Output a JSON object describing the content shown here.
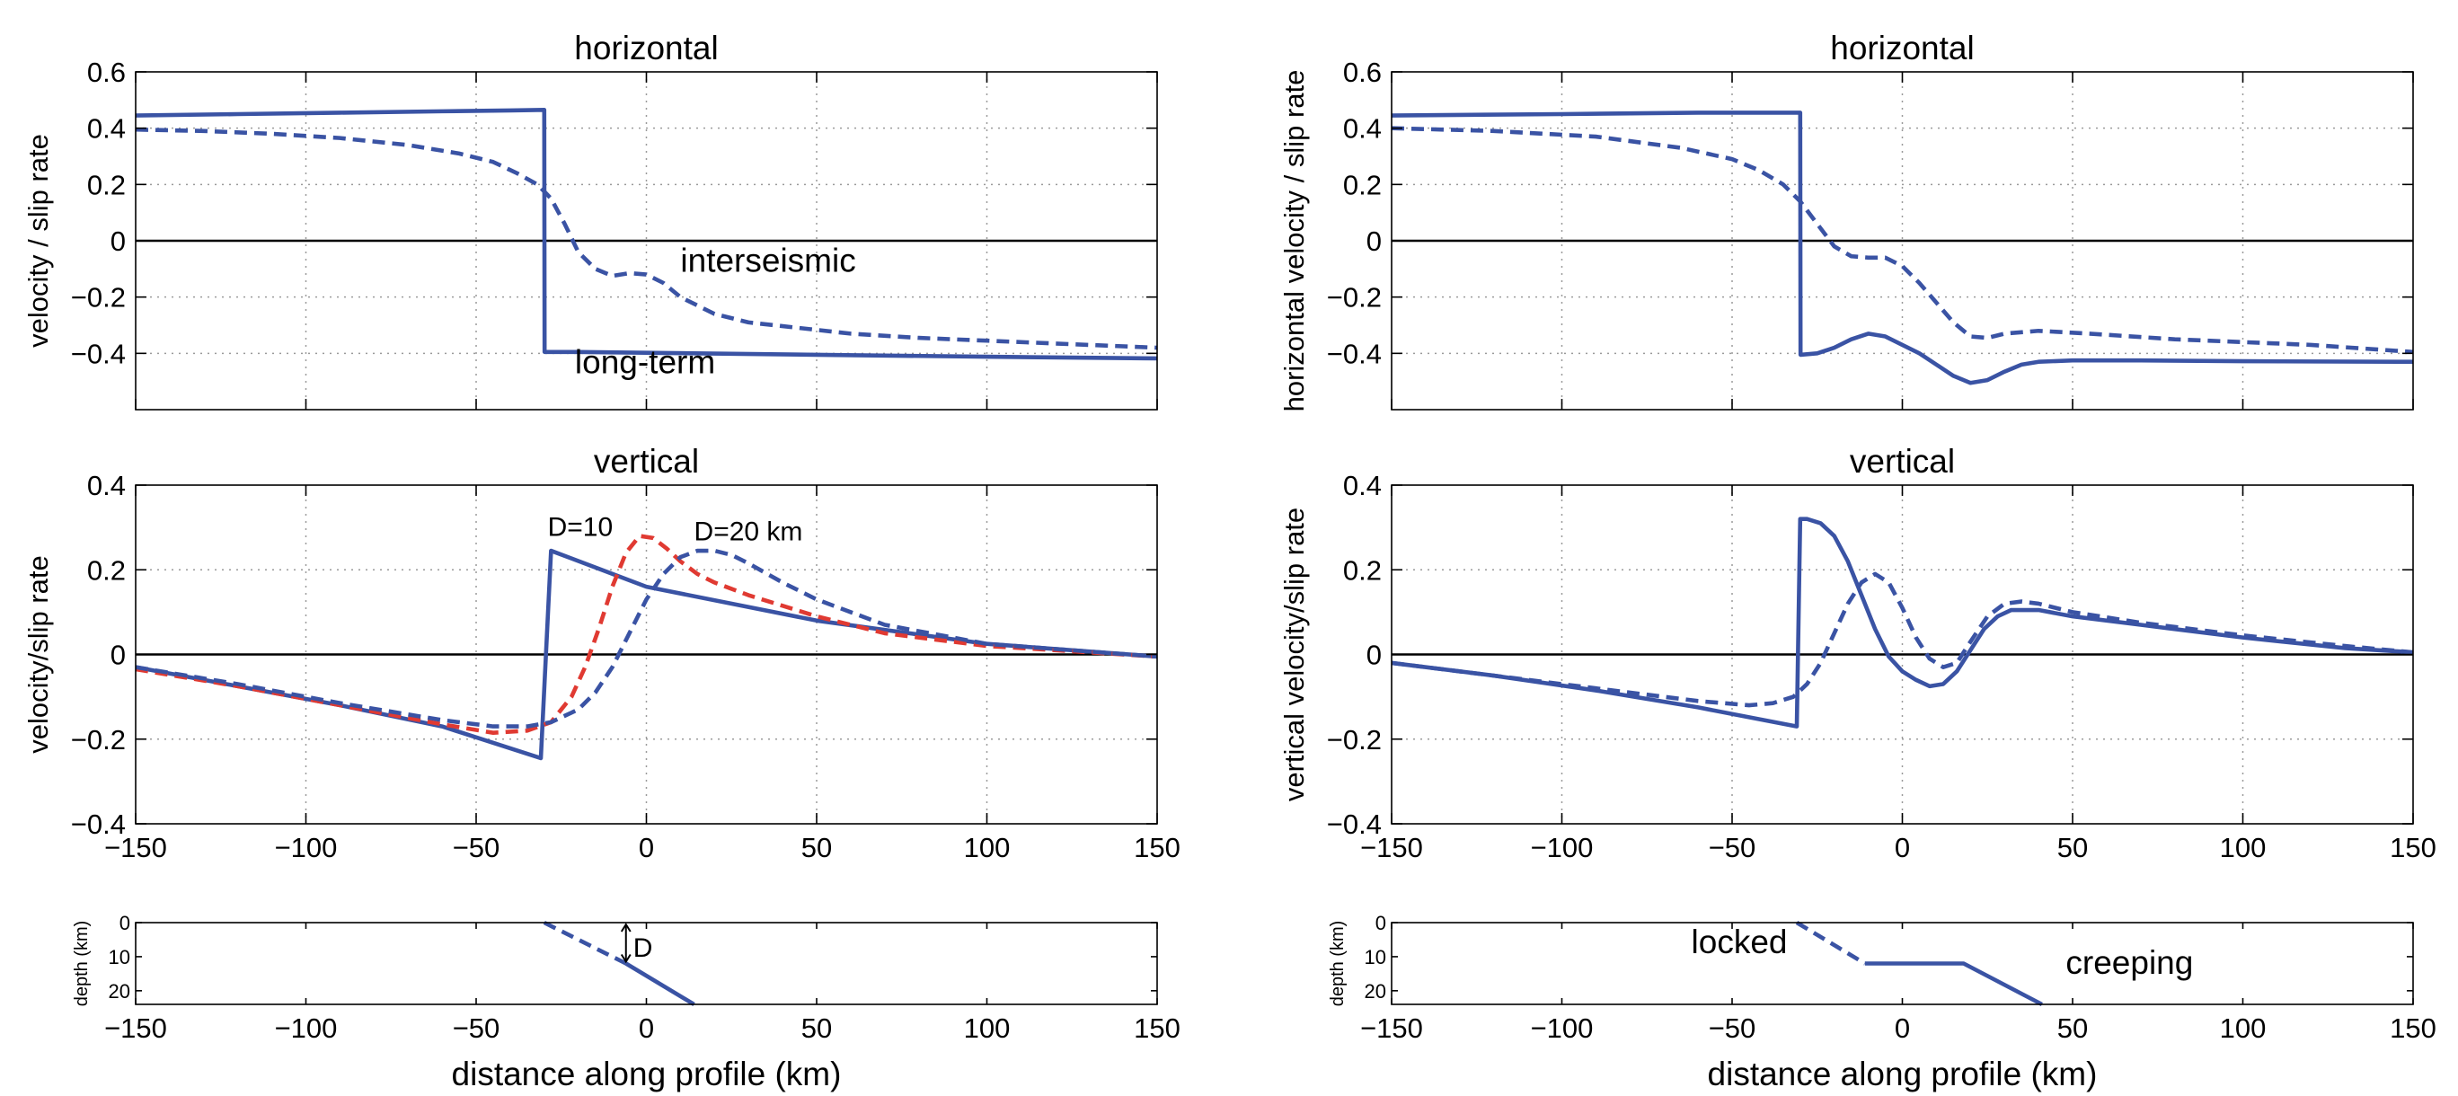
{
  "x_axis_label": "distance along profile (km)",
  "chart_data": [
    {
      "id": "left-horizontal",
      "type": "line",
      "title": "horizontal",
      "ylabel": "velocity / slip rate",
      "xlim": [
        -150,
        150
      ],
      "ylim": [
        -0.6,
        0.6
      ],
      "xticks": [
        -150,
        -100,
        -50,
        0,
        50,
        100,
        150
      ],
      "show_xticklabels": false,
      "yticks": [
        -0.4,
        -0.2,
        0,
        0.2,
        0.4,
        0.6
      ],
      "yticklabels": [
        "−0.4",
        "−0.2",
        "0",
        "0.2",
        "0.4",
        "0.6"
      ],
      "grid": true,
      "series": [
        {
          "color": "#3a53a4",
          "dash": "solid",
          "x": [
            -150,
            -120,
            -90,
            -60,
            -40,
            -30,
            -29.9,
            -20,
            0,
            50,
            100,
            150
          ],
          "y": [
            0.445,
            0.45,
            0.455,
            0.46,
            0.463,
            0.465,
            -0.395,
            -0.395,
            -0.398,
            -0.405,
            -0.412,
            -0.418
          ]
        },
        {
          "color": "#3a53a4",
          "dash": "dashed",
          "x": [
            -150,
            -130,
            -110,
            -90,
            -70,
            -55,
            -45,
            -38,
            -32,
            -28,
            -24,
            -20,
            -15,
            -10,
            -5,
            0,
            5,
            10,
            20,
            30,
            45,
            60,
            80,
            100,
            120,
            150
          ],
          "y": [
            0.395,
            0.39,
            0.38,
            0.365,
            0.34,
            0.31,
            0.28,
            0.24,
            0.2,
            0.15,
            0.06,
            -0.04,
            -0.1,
            -0.125,
            -0.115,
            -0.12,
            -0.15,
            -0.2,
            -0.26,
            -0.29,
            -0.31,
            -0.33,
            -0.345,
            -0.355,
            -0.365,
            -0.38
          ]
        }
      ],
      "annotations": [
        {
          "text": "interseismic",
          "x": 10,
          "y": -0.11
        },
        {
          "text": "long-term",
          "x": -21,
          "y": -0.47
        }
      ]
    },
    {
      "id": "right-horizontal",
      "type": "line",
      "title": "horizontal",
      "ylabel": "horizontal velocity / slip rate",
      "xlim": [
        -150,
        150
      ],
      "ylim": [
        -0.6,
        0.6
      ],
      "xticks": [
        -150,
        -100,
        -50,
        0,
        50,
        100,
        150
      ],
      "show_xticklabels": false,
      "yticks": [
        -0.4,
        -0.2,
        0,
        0.2,
        0.4,
        0.6
      ],
      "yticklabels": [
        "−0.4",
        "−0.2",
        "0",
        "0.2",
        "0.4",
        "0.6"
      ],
      "grid": true,
      "series": [
        {
          "color": "#3a53a4",
          "dash": "solid",
          "x": [
            -150,
            -100,
            -60,
            -40,
            -30,
            -29.9,
            -25,
            -20,
            -15,
            -10,
            -5,
            0,
            5,
            10,
            15,
            20,
            25,
            30,
            35,
            40,
            50,
            70,
            100,
            150
          ],
          "y": [
            0.445,
            0.45,
            0.455,
            0.455,
            0.455,
            -0.405,
            -0.4,
            -0.38,
            -0.35,
            -0.33,
            -0.34,
            -0.37,
            -0.4,
            -0.44,
            -0.48,
            -0.505,
            -0.495,
            -0.465,
            -0.44,
            -0.43,
            -0.425,
            -0.425,
            -0.428,
            -0.43
          ]
        },
        {
          "color": "#3a53a4",
          "dash": "dashed",
          "x": [
            -150,
            -120,
            -90,
            -65,
            -50,
            -42,
            -35,
            -30,
            -25,
            -20,
            -15,
            -10,
            -5,
            0,
            5,
            10,
            15,
            20,
            25,
            30,
            40,
            55,
            80,
            100,
            120,
            150
          ],
          "y": [
            0.4,
            0.39,
            0.37,
            0.33,
            0.29,
            0.25,
            0.2,
            0.14,
            0.06,
            -0.02,
            -0.055,
            -0.06,
            -0.06,
            -0.09,
            -0.15,
            -0.22,
            -0.29,
            -0.34,
            -0.345,
            -0.33,
            -0.32,
            -0.33,
            -0.35,
            -0.36,
            -0.37,
            -0.395
          ]
        }
      ],
      "annotations": []
    },
    {
      "id": "left-vertical",
      "type": "line",
      "title": "vertical",
      "ylabel": "velocity/slip rate",
      "xlim": [
        -150,
        150
      ],
      "ylim": [
        -0.4,
        0.4
      ],
      "xticks": [
        -150,
        -100,
        -50,
        0,
        50,
        100,
        150
      ],
      "xticklabels": [
        "−150",
        "−100",
        "−50",
        "0",
        "50",
        "100",
        "150"
      ],
      "show_xticklabels": true,
      "yticks": [
        -0.4,
        -0.2,
        0,
        0.2,
        0.4
      ],
      "yticklabels": [
        "−0.4",
        "−0.2",
        "0",
        "0.2",
        "0.4"
      ],
      "grid": true,
      "series": [
        {
          "color": "#3a53a4",
          "dash": "solid",
          "x": [
            -150,
            -120,
            -90,
            -60,
            -31,
            -28,
            0,
            50,
            100,
            150
          ],
          "y": [
            -0.03,
            -0.075,
            -0.12,
            -0.17,
            -0.245,
            0.245,
            0.16,
            0.08,
            0.025,
            -0.005
          ]
        },
        {
          "color": "#e03a32",
          "dash": "dashed",
          "x": [
            -150,
            -120,
            -90,
            -60,
            -45,
            -35,
            -28,
            -22,
            -18,
            -14,
            -10,
            -6,
            -2,
            2,
            6,
            10,
            15,
            20,
            30,
            50,
            70,
            100,
            150
          ],
          "y": [
            -0.035,
            -0.075,
            -0.12,
            -0.165,
            -0.185,
            -0.18,
            -0.16,
            -0.1,
            -0.03,
            0.06,
            0.16,
            0.24,
            0.28,
            0.275,
            0.25,
            0.22,
            0.19,
            0.17,
            0.14,
            0.09,
            0.05,
            0.02,
            -0.005
          ]
        },
        {
          "color": "#3a53a4",
          "dash": "dashed",
          "x": [
            -150,
            -120,
            -90,
            -60,
            -45,
            -35,
            -28,
            -20,
            -15,
            -10,
            -5,
            0,
            5,
            10,
            15,
            20,
            25,
            30,
            40,
            50,
            70,
            100,
            150
          ],
          "y": [
            -0.03,
            -0.07,
            -0.115,
            -0.155,
            -0.17,
            -0.17,
            -0.16,
            -0.13,
            -0.09,
            -0.03,
            0.05,
            0.13,
            0.19,
            0.23,
            0.245,
            0.245,
            0.235,
            0.215,
            0.17,
            0.13,
            0.07,
            0.025,
            -0.005
          ]
        }
      ],
      "annotations": [
        {
          "text": "D=10",
          "x": -29,
          "y": 0.28
        },
        {
          "text": "D=20 km",
          "x": 14,
          "y": 0.27
        }
      ]
    },
    {
      "id": "right-vertical",
      "type": "line",
      "title": "vertical",
      "ylabel": "vertical velocity/slip rate",
      "xlim": [
        -150,
        150
      ],
      "ylim": [
        -0.4,
        0.4
      ],
      "xticks": [
        -150,
        -100,
        -50,
        0,
        50,
        100,
        150
      ],
      "xticklabels": [
        "−150",
        "−100",
        "−50",
        "0",
        "50",
        "100",
        "150"
      ],
      "show_xticklabels": true,
      "yticks": [
        -0.4,
        -0.2,
        0,
        0.2,
        0.4
      ],
      "yticklabels": [
        "−0.4",
        "−0.2",
        "0",
        "0.2",
        "0.4"
      ],
      "grid": true,
      "series": [
        {
          "color": "#3a53a4",
          "dash": "solid",
          "x": [
            -150,
            -120,
            -90,
            -60,
            -31,
            -30,
            -28,
            -24,
            -20,
            -16,
            -12,
            -8,
            -4,
            0,
            4,
            8,
            12,
            16,
            20,
            24,
            28,
            32,
            40,
            50,
            70,
            100,
            130,
            150
          ],
          "y": [
            -0.02,
            -0.05,
            -0.085,
            -0.125,
            -0.17,
            0.32,
            0.32,
            0.31,
            0.28,
            0.22,
            0.14,
            0.06,
            -0.005,
            -0.04,
            -0.06,
            -0.075,
            -0.07,
            -0.04,
            0.01,
            0.06,
            0.09,
            0.105,
            0.105,
            0.09,
            0.07,
            0.04,
            0.015,
            0.005
          ]
        },
        {
          "color": "#3a53a4",
          "dash": "dashed",
          "x": [
            -150,
            -120,
            -90,
            -60,
            -45,
            -38,
            -32,
            -28,
            -24,
            -20,
            -16,
            -12,
            -8,
            -4,
            0,
            4,
            8,
            12,
            16,
            20,
            25,
            30,
            35,
            40,
            50,
            70,
            100,
            130,
            150
          ],
          "y": [
            -0.02,
            -0.05,
            -0.08,
            -0.11,
            -0.12,
            -0.115,
            -0.1,
            -0.07,
            -0.02,
            0.05,
            0.12,
            0.17,
            0.19,
            0.17,
            0.11,
            0.04,
            -0.01,
            -0.03,
            -0.02,
            0.03,
            0.09,
            0.12,
            0.125,
            0.12,
            0.1,
            0.075,
            0.045,
            0.02,
            0.005
          ]
        }
      ],
      "annotations": []
    },
    {
      "id": "left-depth",
      "type": "line",
      "title": "",
      "ylabel": "depth (km)",
      "xlim": [
        -150,
        150
      ],
      "ylim": [
        0,
        24
      ],
      "y_inverted": true,
      "xticks": [
        -150,
        -100,
        -50,
        0,
        50,
        100,
        150
      ],
      "xticklabels": [
        "−150",
        "−100",
        "−50",
        "0",
        "50",
        "100",
        "150"
      ],
      "show_xticklabels": true,
      "yticks": [
        0,
        10,
        20
      ],
      "yticklabels": [
        "0",
        "10",
        "20"
      ],
      "grid": false,
      "series": [
        {
          "color": "#3a53a4",
          "dash": "dashed",
          "x": [
            -30,
            -6
          ],
          "y": [
            0,
            12
          ]
        },
        {
          "color": "#3a53a4",
          "dash": "solid",
          "x": [
            -6,
            14
          ],
          "y": [
            12,
            24
          ]
        }
      ],
      "annotations": [
        {
          "text": "D",
          "x": -4,
          "y": 7
        }
      ]
    },
    {
      "id": "right-depth",
      "type": "line",
      "title": "",
      "ylabel": "depth (km)",
      "xlim": [
        -150,
        150
      ],
      "ylim": [
        0,
        24
      ],
      "y_inverted": true,
      "xticks": [
        -150,
        -100,
        -50,
        0,
        50,
        100,
        150
      ],
      "xticklabels": [
        "−150",
        "−100",
        "−50",
        "0",
        "50",
        "100",
        "150"
      ],
      "show_xticklabels": true,
      "yticks": [
        0,
        10,
        20
      ],
      "yticklabels": [
        "0",
        "10",
        "20"
      ],
      "grid": false,
      "series": [
        {
          "color": "#3a53a4",
          "dash": "dashed",
          "x": [
            -31,
            -11
          ],
          "y": [
            0,
            12
          ]
        },
        {
          "color": "#3a53a4",
          "dash": "solid",
          "x": [
            -11,
            18,
            41
          ],
          "y": [
            12,
            12,
            24
          ]
        }
      ],
      "annotations": [
        {
          "text": "locked",
          "x": -62,
          "y": 9
        },
        {
          "text": "creeping",
          "x": 48,
          "y": 15
        }
      ]
    }
  ]
}
